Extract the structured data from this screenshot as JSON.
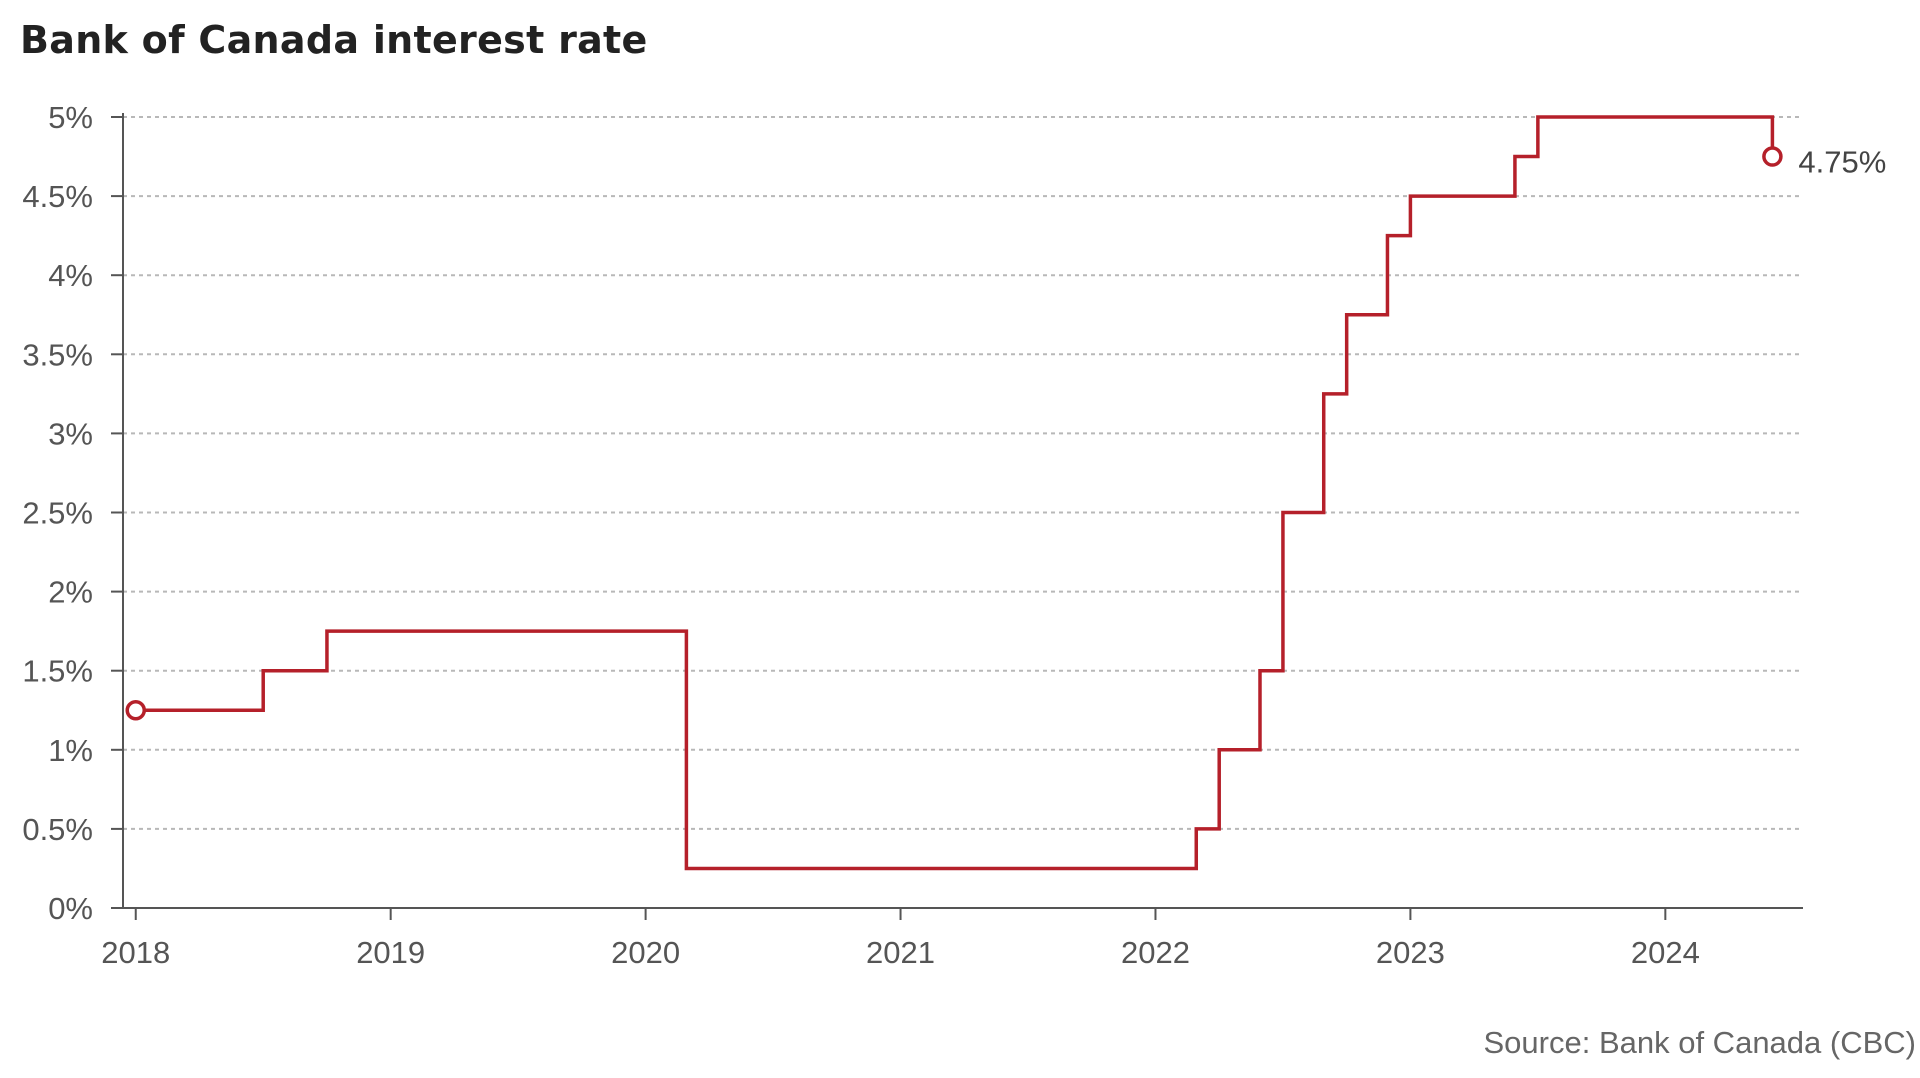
{
  "chart_data": {
    "type": "line",
    "step": true,
    "title": "Bank of Canada interest rate",
    "source": "Source: Bank of Canada (CBC)",
    "xlabel": "",
    "ylabel": "",
    "xlim": [
      2017.95,
      2024.54
    ],
    "ylim": [
      0,
      5
    ],
    "grid": true,
    "x_ticks": [
      2018,
      2019,
      2020,
      2021,
      2022,
      2023,
      2024
    ],
    "x_tick_labels": [
      "2018",
      "2019",
      "2020",
      "2021",
      "2022",
      "2023",
      "2024"
    ],
    "y_ticks": [
      0,
      0.5,
      1,
      1.5,
      2,
      2.5,
      3,
      3.5,
      4,
      4.5,
      5
    ],
    "y_tick_labels": [
      "0%",
      "0.5%",
      "1%",
      "1.5%",
      "2%",
      "2.5%",
      "3%",
      "3.5%",
      "4%",
      "4.5%",
      "5%"
    ],
    "color": "#b5202a",
    "series": [
      {
        "x": [
          2018.0,
          2018.5,
          2018.75,
          2020.16,
          2022.16,
          2022.25,
          2022.41,
          2022.5,
          2022.66,
          2022.75,
          2022.91,
          2023.0,
          2023.41,
          2023.5,
          2024.42
        ],
        "y": [
          1.25,
          1.5,
          1.75,
          0.25,
          0.5,
          1.0,
          1.5,
          2.5,
          3.25,
          3.75,
          4.25,
          4.5,
          4.75,
          5.0,
          4.75
        ]
      }
    ],
    "end_label": "4.75%"
  }
}
